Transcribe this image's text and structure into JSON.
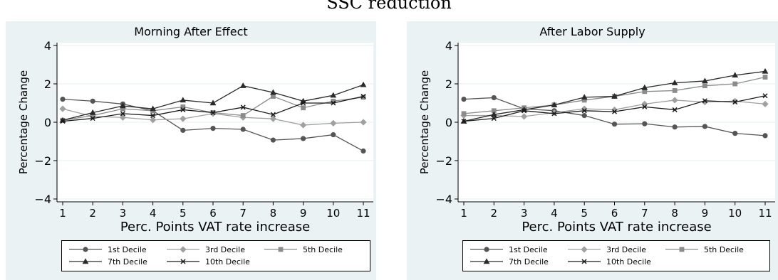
{
  "supertitle": "SSC reduction",
  "colors": {
    "panel_bg": "#eaf2f3",
    "plot_bg": "#ffffff",
    "grid": "#eaf2f3",
    "series": [
      "#555555",
      "#a0a0a0",
      "#8c8c8c",
      "#2a2a2a",
      "#1a1a1a"
    ]
  },
  "chart_data": [
    {
      "type": "line",
      "title": "Morning After Effect",
      "xlabel": "Perc. Points VAT rate increase",
      "ylabel": "Percentage Change",
      "x": [
        1,
        2,
        3,
        4,
        5,
        6,
        7,
        8,
        9,
        10,
        11
      ],
      "xlim": [
        1,
        11
      ],
      "ylim": [
        -4,
        4
      ],
      "yticks": [
        -4,
        -2,
        0,
        2,
        4
      ],
      "yticklabels": [
        "−4",
        "−2",
        "0",
        "2",
        "4"
      ],
      "grid": true,
      "legend_position": "bottom",
      "series": [
        {
          "name": "1st Decile",
          "marker": "circle",
          "values": [
            1.2,
            1.1,
            0.95,
            0.6,
            -0.42,
            -0.32,
            -0.37,
            -0.93,
            -0.85,
            -0.65,
            -1.5
          ]
        },
        {
          "name": "3rd Decile",
          "marker": "diamond",
          "values": [
            0.7,
            0.3,
            0.25,
            0.12,
            0.18,
            0.45,
            0.25,
            0.18,
            -0.15,
            -0.05,
            0.0
          ]
        },
        {
          "name": "5th Decile",
          "marker": "square",
          "values": [
            0.1,
            0.35,
            0.7,
            0.6,
            0.8,
            0.5,
            0.35,
            1.35,
            0.75,
            1.1,
            1.3
          ]
        },
        {
          "name": "7th Decile",
          "marker": "triangle",
          "values": [
            0.1,
            0.5,
            0.85,
            0.7,
            1.15,
            1.0,
            1.9,
            1.55,
            1.1,
            1.4,
            1.95
          ]
        },
        {
          "name": "10th Decile",
          "marker": "x",
          "values": [
            0.05,
            0.2,
            0.45,
            0.35,
            0.65,
            0.5,
            0.78,
            0.4,
            1.0,
            1.0,
            1.35
          ]
        }
      ]
    },
    {
      "type": "line",
      "title": "After Labor Supply",
      "xlabel": "Perc. Points VAT rate increase",
      "ylabel": "Percentage Change",
      "x": [
        1,
        2,
        3,
        4,
        5,
        6,
        7,
        8,
        9,
        10,
        11
      ],
      "xlim": [
        1,
        11
      ],
      "ylim": [
        -4,
        4
      ],
      "yticks": [
        -4,
        -2,
        0,
        2,
        4
      ],
      "yticklabels": [
        "−4",
        "−2",
        "0",
        "2",
        "4"
      ],
      "grid": true,
      "legend_position": "bottom",
      "series": [
        {
          "name": "1st Decile",
          "marker": "circle",
          "values": [
            1.2,
            1.28,
            0.7,
            0.6,
            0.35,
            -0.1,
            -0.08,
            -0.25,
            -0.22,
            -0.58,
            -0.7
          ]
        },
        {
          "name": "3rd Decile",
          "marker": "diamond",
          "values": [
            0.35,
            0.35,
            0.3,
            0.5,
            0.7,
            0.65,
            0.95,
            1.15,
            1.05,
            1.1,
            0.95
          ]
        },
        {
          "name": "5th Decile",
          "marker": "square",
          "values": [
            0.45,
            0.6,
            0.75,
            0.9,
            1.15,
            1.35,
            1.6,
            1.65,
            1.9,
            2.0,
            2.35
          ]
        },
        {
          "name": "7th Decile",
          "marker": "triangle",
          "values": [
            0.05,
            0.4,
            0.65,
            0.9,
            1.3,
            1.35,
            1.8,
            2.05,
            2.15,
            2.45,
            2.65
          ]
        },
        {
          "name": "10th Decile",
          "marker": "x",
          "values": [
            0.05,
            0.2,
            0.6,
            0.45,
            0.6,
            0.55,
            0.8,
            0.65,
            1.12,
            1.05,
            1.38
          ]
        }
      ]
    }
  ]
}
